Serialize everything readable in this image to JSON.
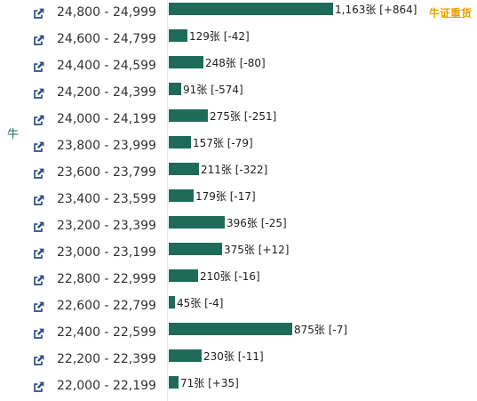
{
  "side_label": "牛",
  "corner_tag": "牛证重货",
  "colors": {
    "bar": "#1e6b5a",
    "accent": "#e5a100",
    "icon": "#2a4f8a"
  },
  "icon": "external-link-icon",
  "chart_data": {
    "type": "bar",
    "orientation": "horizontal",
    "categories": [
      "24,800 - 24,999",
      "24,600 - 24,799",
      "24,400 - 24,599",
      "24,200 - 24,399",
      "24,000 - 24,199",
      "23,800 - 23,999",
      "23,600 - 23,799",
      "23,400 - 23,599",
      "23,200 - 23,399",
      "23,000 - 23,199",
      "22,800 - 22,999",
      "22,600 - 22,799",
      "22,400 - 22,599",
      "22,200 - 22,399",
      "22,000 - 22,199"
    ],
    "values": [
      1163,
      129,
      248,
      91,
      275,
      157,
      211,
      179,
      396,
      375,
      210,
      45,
      875,
      230,
      71
    ],
    "changes": [
      864,
      -42,
      -80,
      -574,
      -251,
      -79,
      -322,
      -17,
      -25,
      12,
      -16,
      -4,
      -7,
      -11,
      35
    ],
    "labels": [
      "1,163张 [+864]",
      "129张 [-42]",
      "248张 [-80]",
      "91张 [-574]",
      "275张 [-251]",
      "157张 [-79]",
      "211张 [-322]",
      "179张 [-17]",
      "396张 [-25]",
      "375张 [+12]",
      "210张 [-16]",
      "45张 [-4]",
      "875张 [-7]",
      "230张 [-11]",
      "71张 [+35]"
    ],
    "xlim": [
      0,
      1163
    ]
  }
}
